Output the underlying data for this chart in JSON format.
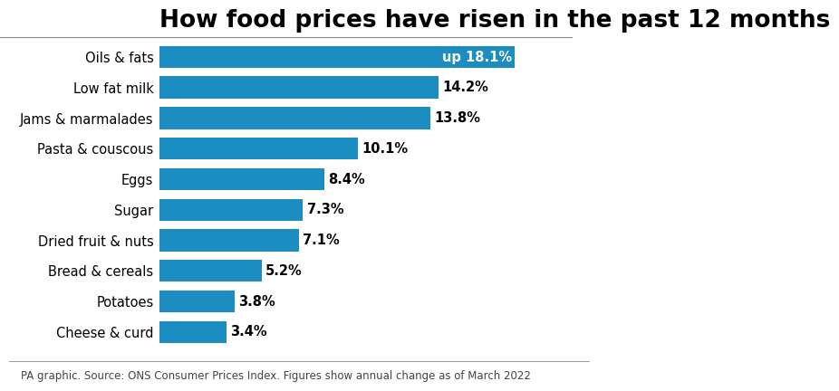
{
  "title": "How food prices have risen in the past 12 months",
  "categories": [
    "Cheese & curd",
    "Potatoes",
    "Bread & cereals",
    "Dried fruit & nuts",
    "Sugar",
    "Eggs",
    "Pasta & couscous",
    "Jams & marmalades",
    "Low fat milk",
    "Oils & fats"
  ],
  "values": [
    3.4,
    3.8,
    5.2,
    7.1,
    7.3,
    8.4,
    10.1,
    13.8,
    14.2,
    18.1
  ],
  "labels": [
    "3.4%",
    "3.8%",
    "5.2%",
    "7.1%",
    "7.3%",
    "8.4%",
    "10.1%",
    "13.8%",
    "14.2%",
    "up 18.1%"
  ],
  "bar_color": "#1B8DC0",
  "top_label_fg": "#ffffff",
  "label_color": "#000000",
  "title_color": "#000000",
  "background_color": "#ffffff",
  "footer": "PA graphic. Source: ONS Consumer Prices Index. Figures show annual change as of March 2022",
  "xlim": [
    0,
    21
  ],
  "title_fontsize": 19,
  "label_fontsize": 10.5,
  "footer_fontsize": 8.5,
  "category_fontsize": 10.5,
  "bar_height": 0.72
}
